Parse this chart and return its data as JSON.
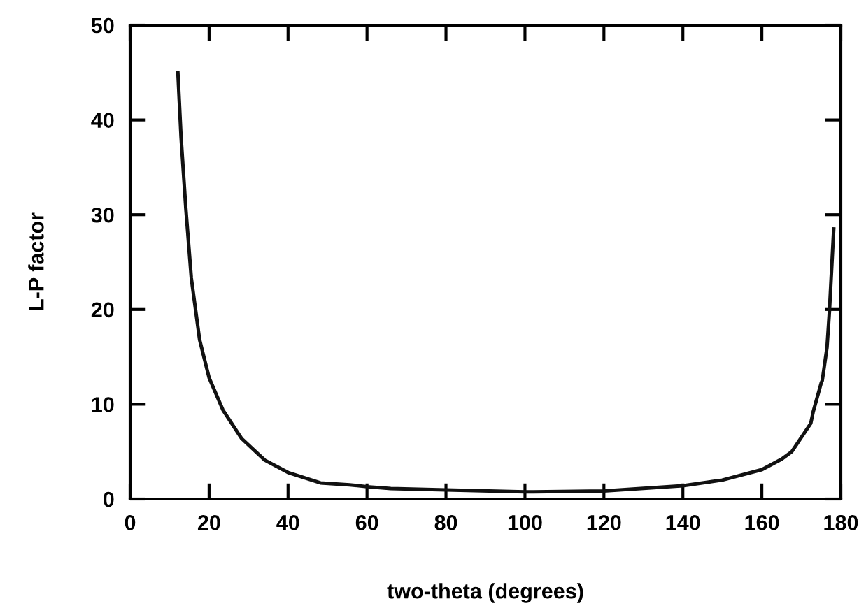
{
  "chart_data": {
    "type": "line",
    "xlabel": "two-theta (degrees)",
    "ylabel": "L-P factor",
    "xlim": [
      0,
      180
    ],
    "ylim": [
      0,
      50
    ],
    "xticks": [
      0,
      20,
      40,
      60,
      80,
      100,
      120,
      140,
      160,
      180
    ],
    "yticks": [
      0,
      10,
      20,
      30,
      40,
      50
    ],
    "grid": false,
    "series": [
      {
        "color": "#111111",
        "x": [
          12.1,
          12.9,
          14.1,
          15.5,
          17.6,
          20,
          23.5,
          28.2,
          34.1,
          40,
          48.2,
          55.6,
          60,
          66,
          80,
          100,
          120,
          140,
          150,
          160,
          165,
          167.6,
          170,
          172.4,
          173,
          175,
          175.3,
          176.5,
          177.1,
          178.2
        ],
        "values": [
          45.0,
          38.2,
          30.7,
          23.3,
          16.8,
          12.8,
          9.4,
          6.4,
          4.1,
          2.8,
          1.7,
          1.5,
          1.3,
          1.1,
          0.95,
          0.75,
          0.85,
          1.4,
          2.0,
          3.1,
          4.2,
          5.0,
          6.5,
          8.0,
          9.2,
          12.2,
          12.5,
          16,
          19.7,
          28.5
        ]
      }
    ]
  }
}
